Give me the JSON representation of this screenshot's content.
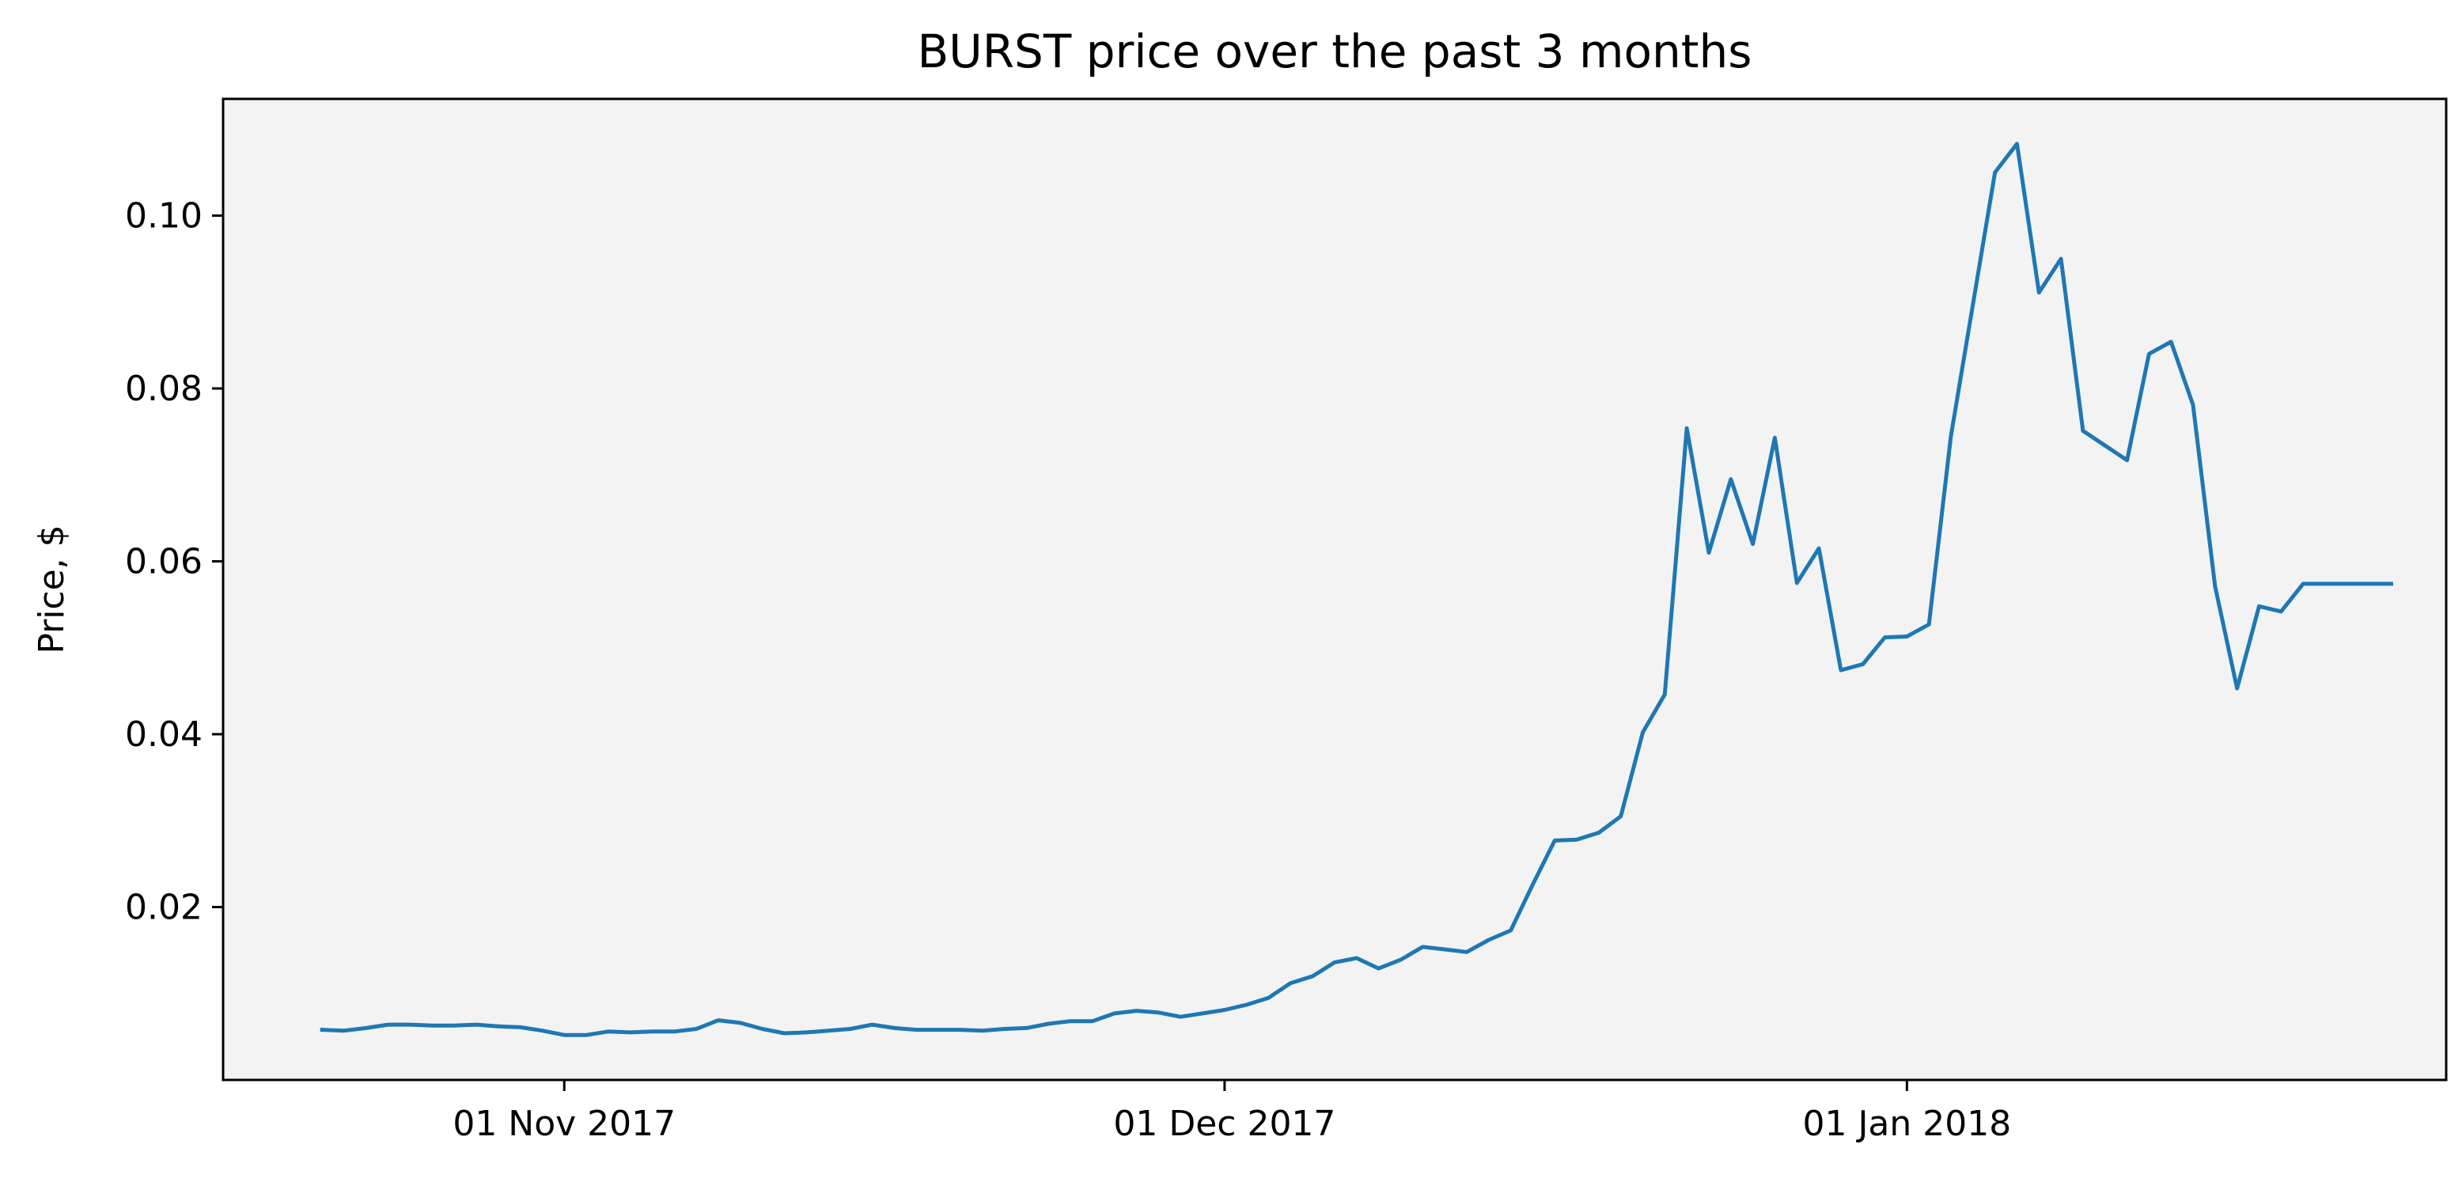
{
  "chart_data": {
    "type": "line",
    "title": "BURST price over the past 3 months",
    "xlabel": "",
    "ylabel": "Price, $",
    "x_tick_labels": [
      "01 Nov 2017",
      "01 Dec 2017",
      "01 Jan 2018"
    ],
    "x_tick_dates": [
      "2017-11-01",
      "2017-12-01",
      "2018-01-01"
    ],
    "y_ticks": [
      0.02,
      0.04,
      0.06,
      0.08,
      0.1
    ],
    "y_tick_labels": [
      "0.02",
      "0.04",
      "0.06",
      "0.08",
      "0.10"
    ],
    "ylim": [
      0.0,
      0.1135
    ],
    "xlim": [
      "2017-10-16T12:00",
      "2018-01-25T12:00"
    ],
    "grid": false,
    "legend": false,
    "background_color": "#f3f3f3",
    "line_color": "#1f77b4",
    "series": [
      {
        "x": [
          "2017-10-21",
          "2017-10-22",
          "2017-10-23",
          "2017-10-24",
          "2017-10-25",
          "2017-10-26",
          "2017-10-27",
          "2017-10-28",
          "2017-10-29",
          "2017-10-30",
          "2017-10-31",
          "2017-11-01",
          "2017-11-02",
          "2017-11-03",
          "2017-11-04",
          "2017-11-05",
          "2017-11-06",
          "2017-11-07",
          "2017-11-08",
          "2017-11-09",
          "2017-11-10",
          "2017-11-11",
          "2017-11-12",
          "2017-11-13",
          "2017-11-14",
          "2017-11-15",
          "2017-11-16",
          "2017-11-17",
          "2017-11-18",
          "2017-11-19",
          "2017-11-20",
          "2017-11-21",
          "2017-11-22",
          "2017-11-23",
          "2017-11-24",
          "2017-11-25",
          "2017-11-26",
          "2017-11-27",
          "2017-11-28",
          "2017-11-29",
          "2017-11-30",
          "2017-12-01",
          "2017-12-02",
          "2017-12-03",
          "2017-12-04",
          "2017-12-05",
          "2017-12-06",
          "2017-12-07",
          "2017-12-08",
          "2017-12-09",
          "2017-12-10",
          "2017-12-11",
          "2017-12-12",
          "2017-12-13",
          "2017-12-14",
          "2017-12-15",
          "2017-12-16",
          "2017-12-17",
          "2017-12-18",
          "2017-12-19",
          "2017-12-20",
          "2017-12-21",
          "2017-12-22",
          "2017-12-23",
          "2017-12-24",
          "2017-12-25",
          "2017-12-26",
          "2017-12-27",
          "2017-12-28",
          "2017-12-29",
          "2017-12-30",
          "2017-12-31",
          "2018-01-01",
          "2018-01-02",
          "2018-01-03",
          "2018-01-05",
          "2018-01-06",
          "2018-01-07",
          "2018-01-08",
          "2018-01-09",
          "2018-01-11",
          "2018-01-12",
          "2018-01-13",
          "2018-01-14",
          "2018-01-15",
          "2018-01-16",
          "2018-01-17",
          "2018-01-18",
          "2018-01-19",
          "2018-01-20",
          "2018-01-21",
          "2018-01-22",
          "2018-01-23"
        ],
        "values": [
          0.0058,
          0.0057,
          0.006,
          0.0064,
          0.0064,
          0.0063,
          0.0063,
          0.0064,
          0.0062,
          0.0061,
          0.0057,
          0.0052,
          0.0052,
          0.0056,
          0.0055,
          0.0056,
          0.0056,
          0.0059,
          0.0069,
          0.0066,
          0.0059,
          0.0054,
          0.0055,
          0.0057,
          0.0059,
          0.0064,
          0.006,
          0.0058,
          0.0058,
          0.0058,
          0.0057,
          0.0059,
          0.006,
          0.0065,
          0.0068,
          0.0068,
          0.0077,
          0.008,
          0.0078,
          0.0073,
          0.0077,
          0.0081,
          0.0087,
          0.0095,
          0.0112,
          0.012,
          0.0136,
          0.0141,
          0.0129,
          0.0139,
          0.0154,
          0.0151,
          0.0148,
          0.0162,
          0.0173,
          0.0226,
          0.0277,
          0.0278,
          0.0286,
          0.0305,
          0.0402,
          0.0446,
          0.0754,
          0.061,
          0.0695,
          0.062,
          0.0743,
          0.0575,
          0.0615,
          0.0474,
          0.0481,
          0.0512,
          0.0513,
          0.0527,
          0.0745,
          0.105,
          0.1083,
          0.0911,
          0.095,
          0.0751,
          0.0717,
          0.084,
          0.0854,
          0.0781,
          0.0571,
          0.0453,
          0.0548,
          0.0542,
          0.0574,
          0.0574,
          0.0574,
          0.0574,
          0.0574
        ]
      }
    ]
  }
}
